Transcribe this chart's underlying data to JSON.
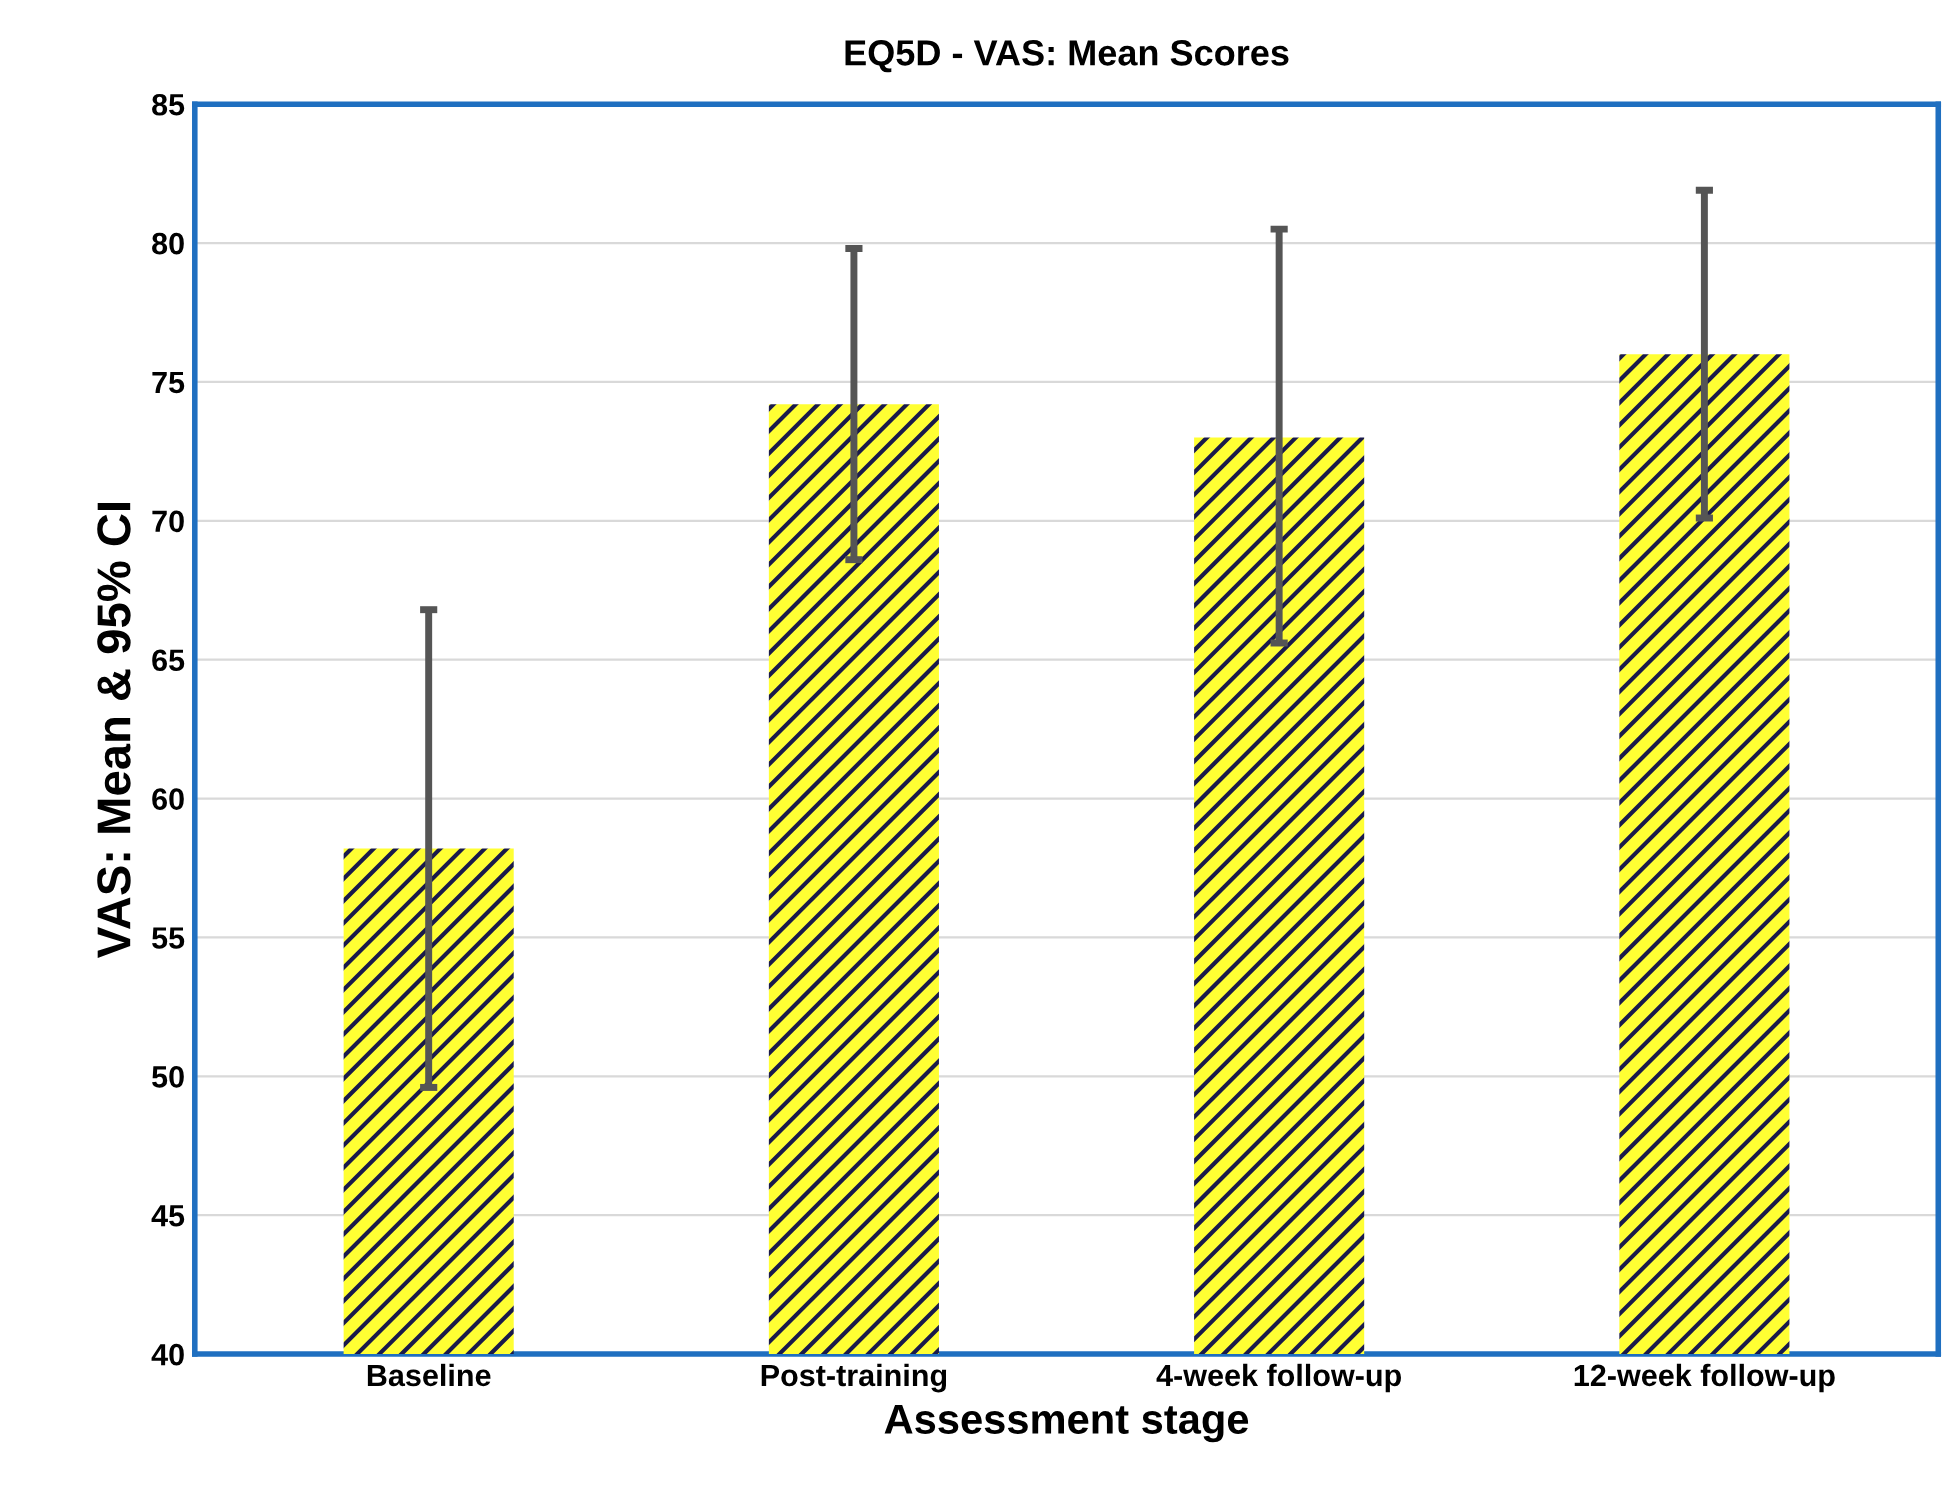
{
  "chart_data": {
    "type": "bar",
    "title": "EQ5D - VAS: Mean Scores",
    "xlabel": "Assessment stage",
    "ylabel": "VAS: Mean & 95% CI",
    "categories": [
      "Baseline",
      "Post-training",
      "4-week follow-up",
      "12-week follow-up"
    ],
    "values": [
      58.2,
      74.2,
      73.0,
      76.0
    ],
    "errors": [
      [
        49.6,
        66.8
      ],
      [
        68.6,
        79.8
      ],
      [
        65.6,
        80.5
      ],
      [
        70.1,
        81.9
      ]
    ],
    "color": "#ffff33",
    "ylim": [
      40,
      85
    ],
    "yticks": [
      40,
      45,
      50,
      55,
      60,
      65,
      70,
      75,
      80,
      85
    ],
    "grid": "y"
  }
}
